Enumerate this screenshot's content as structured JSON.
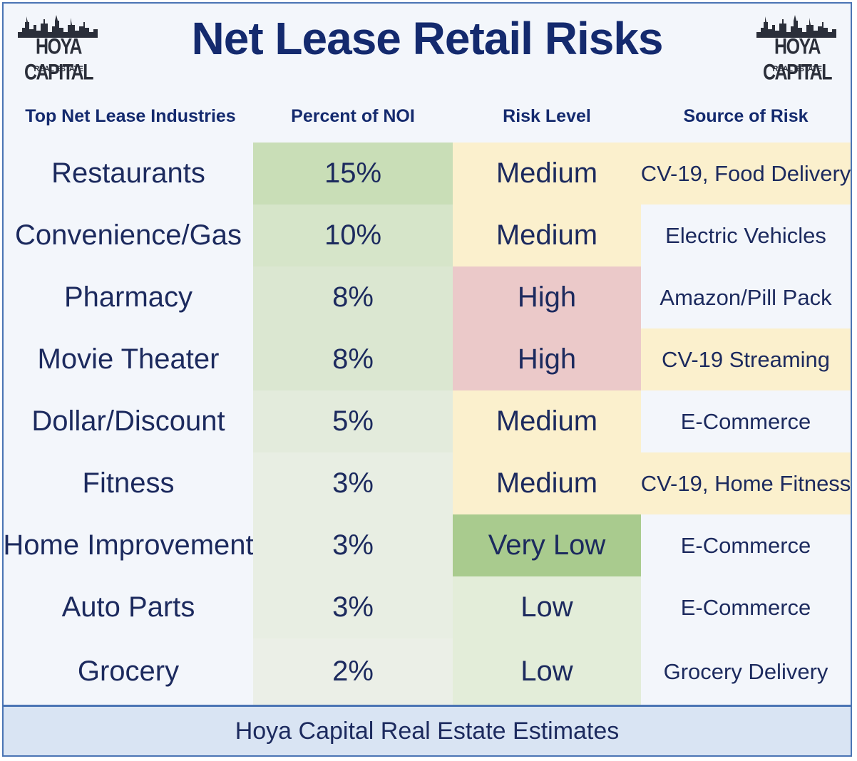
{
  "title": "Net Lease Retail Risks",
  "logo": {
    "name": "HOYA CAPITAL",
    "sub": "REAL ESTATE"
  },
  "columns": [
    "Top Net Lease Industries",
    "Percent of NOI",
    "Risk Level",
    "Source of Risk"
  ],
  "colors": {
    "risk_very_low": "#a9cb8e",
    "risk_low": "#e3edd9",
    "risk_medium": "#fbf0cd",
    "risk_high": "#ebc9c9",
    "source_highlight": "#fbf0cd",
    "source_default": "#f3f6fb"
  },
  "chart_data": {
    "type": "table",
    "rows": [
      {
        "industry": "Restaurants",
        "percent": "15%",
        "noi": 15,
        "risk": "Medium",
        "source": "CV-19, Food Delivery",
        "source_highlight": true
      },
      {
        "industry": "Convenience/Gas",
        "percent": "10%",
        "noi": 10,
        "risk": "Medium",
        "source": "Electric Vehicles",
        "source_highlight": false
      },
      {
        "industry": "Pharmacy",
        "percent": "8%",
        "noi": 8,
        "risk": "High",
        "source": "Amazon/Pill Pack",
        "source_highlight": false
      },
      {
        "industry": "Movie Theater",
        "percent": "8%",
        "noi": 8,
        "risk": "High",
        "source": "CV-19 Streaming",
        "source_highlight": true
      },
      {
        "industry": "Dollar/Discount",
        "percent": "5%",
        "noi": 5,
        "risk": "Medium",
        "source": "E-Commerce",
        "source_highlight": false
      },
      {
        "industry": "Fitness",
        "percent": "3%",
        "noi": 3,
        "risk": "Medium",
        "source": "CV-19, Home Fitness",
        "source_highlight": true
      },
      {
        "industry": "Home Improvement",
        "percent": "3%",
        "noi": 3,
        "risk": "Very Low",
        "source": "E-Commerce",
        "source_highlight": false
      },
      {
        "industry": "Auto Parts",
        "percent": "3%",
        "noi": 3,
        "risk": "Low",
        "source": "E-Commerce",
        "source_highlight": false
      },
      {
        "industry": "Grocery",
        "percent": "2%",
        "noi": 2,
        "risk": "Low",
        "source": "Grocery Delivery",
        "source_highlight": false
      }
    ]
  },
  "footer": "Hoya Capital Real Estate Estimates"
}
